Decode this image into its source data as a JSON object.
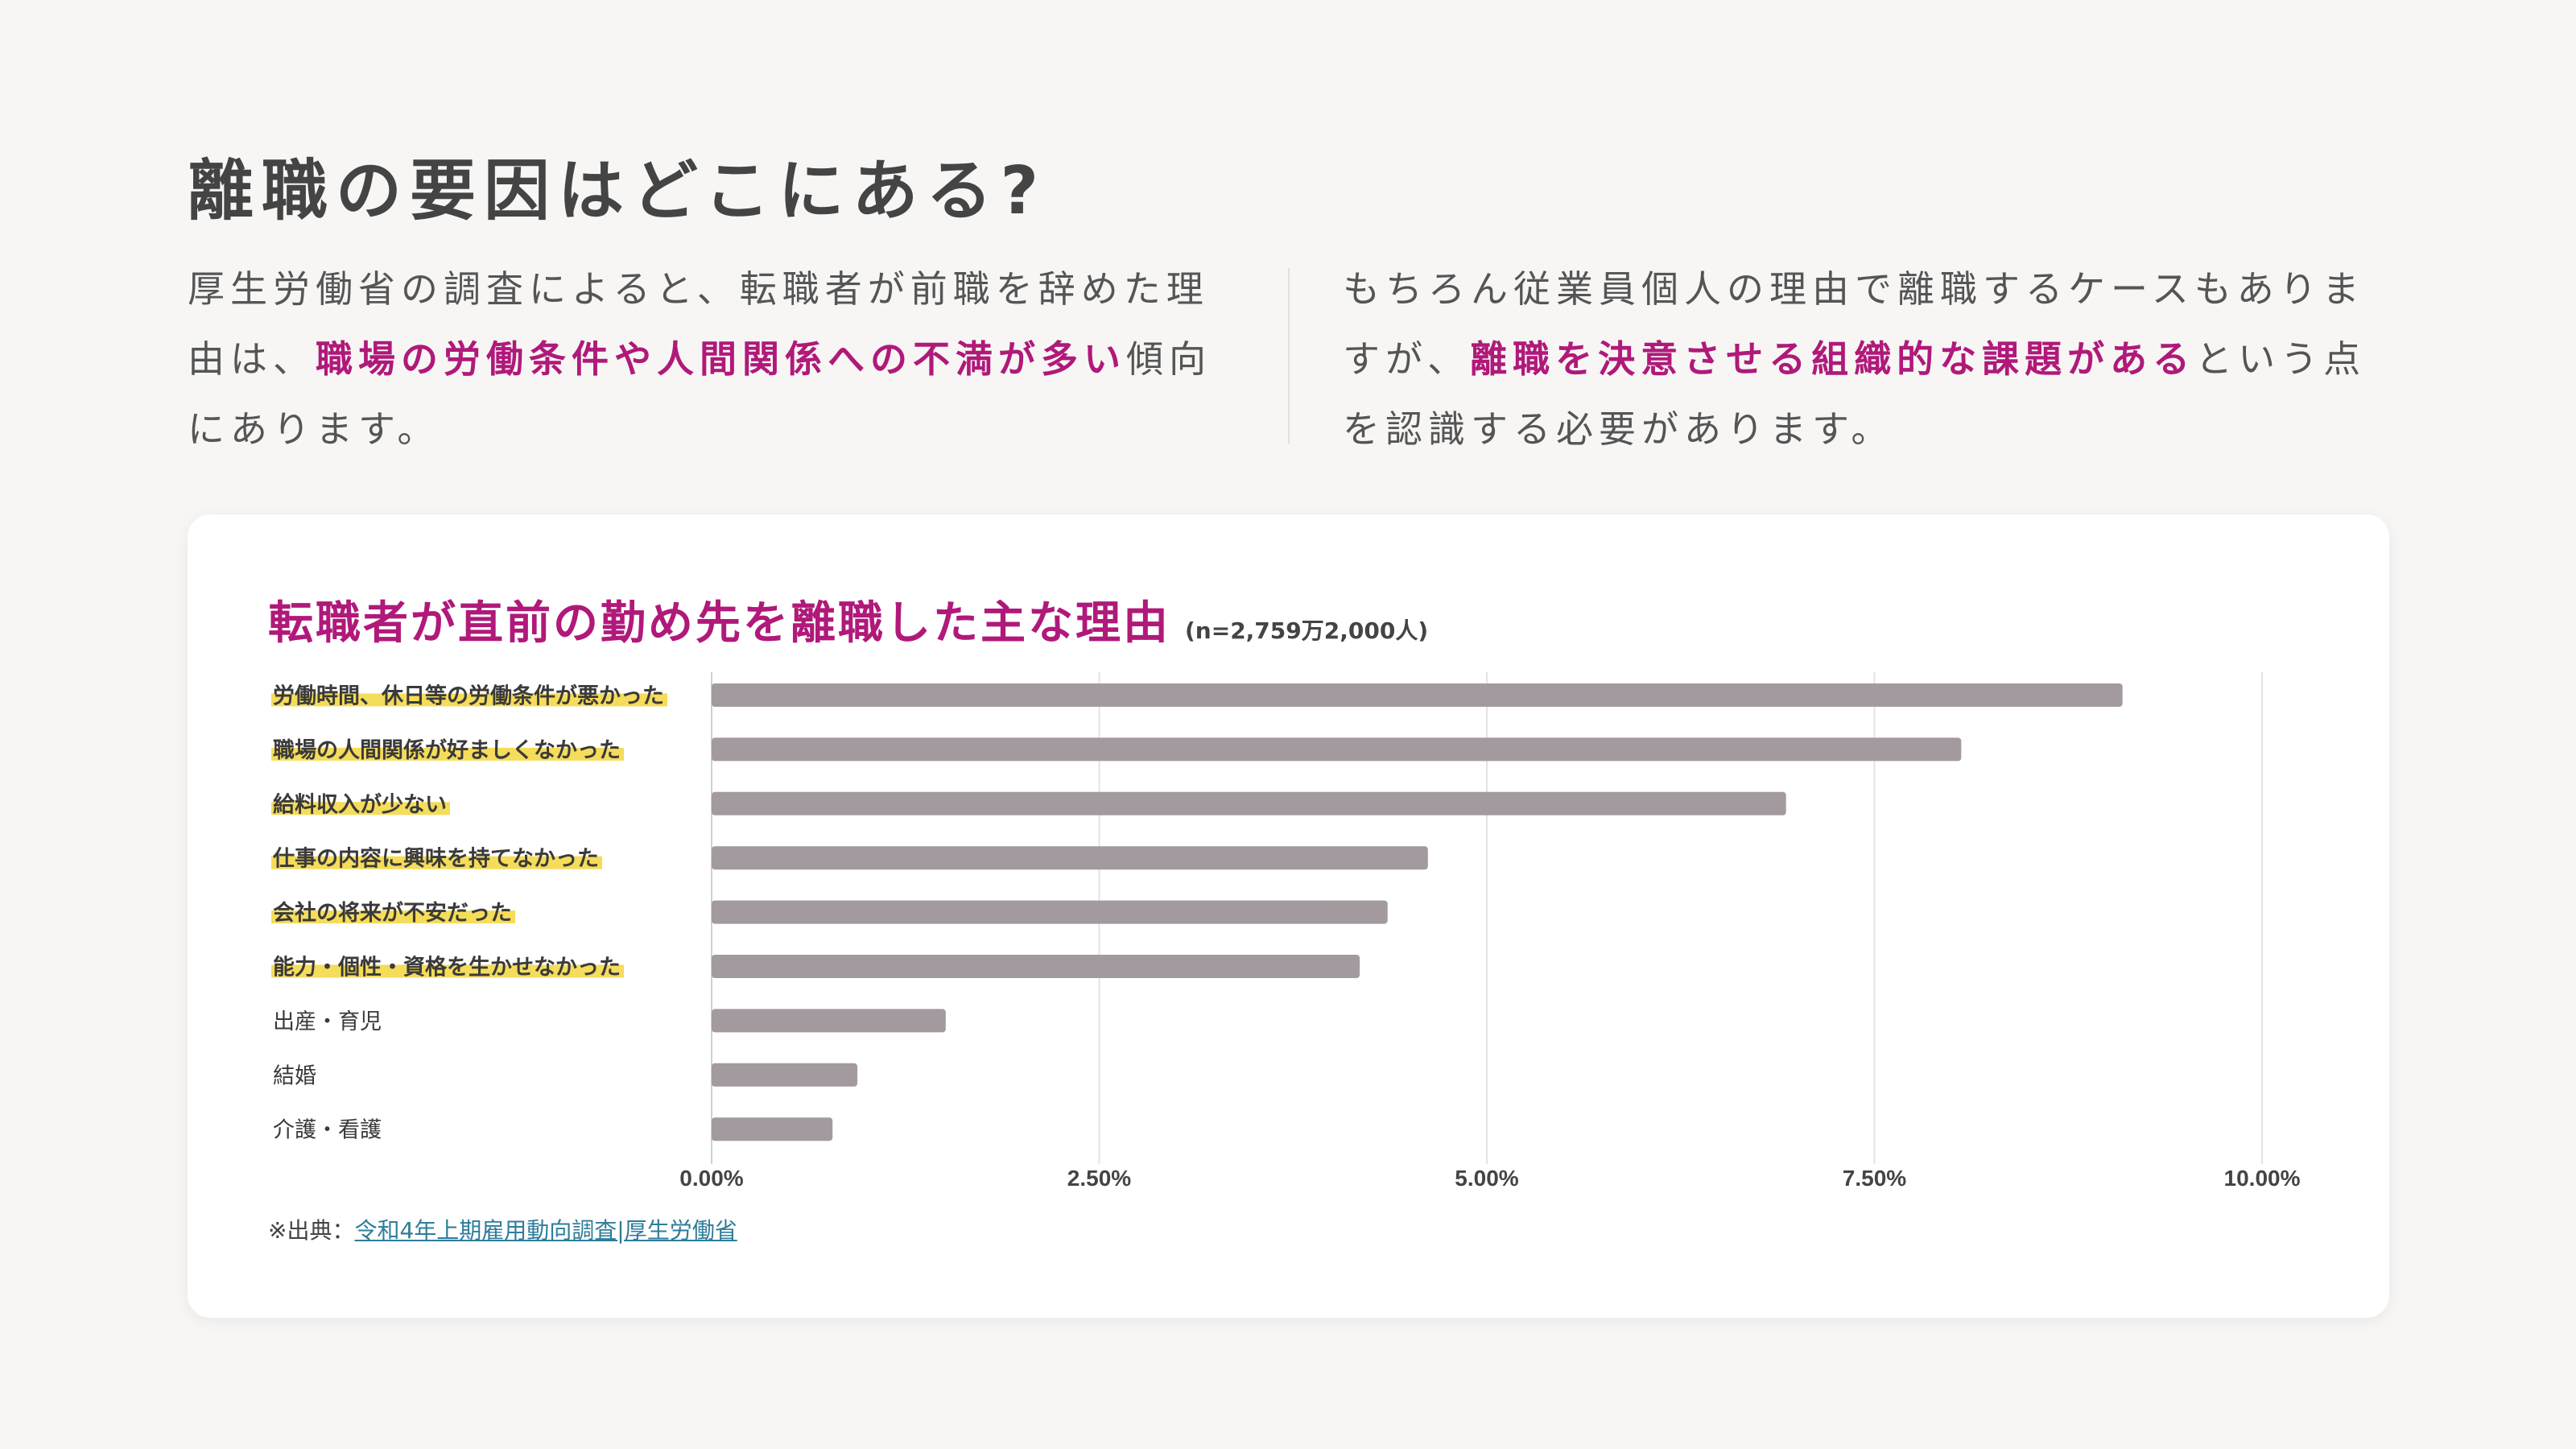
{
  "header": {
    "title": "離職の要因はどこにある?"
  },
  "intro_left": {
    "pre": "厚生労働省の調査によると、転職者が前職を辞めた理由は、",
    "highlight": "職場の労働条件や人間関係への不満が多い",
    "post": "傾向にあります。"
  },
  "intro_right": {
    "pre": "もちろん従業員個人の理由で離職するケースもありますが、",
    "highlight": "離職を決意させる組織的な課題がある",
    "post": "という点を認識する必要があります。"
  },
  "colors": {
    "accent": "#b0197a",
    "bar": "#a39a9f",
    "label_highlight": "#f5dc5a",
    "link": "#2f7d9a"
  },
  "chart_data": {
    "type": "bar",
    "orientation": "horizontal",
    "title": "転職者が直前の勤め先を離職した主な理由",
    "subtitle": "(n=2,759万2,000人)",
    "categories": [
      "労働時間、休日等の労働条件が悪かった",
      "職場の人間関係が好ましくなかった",
      "給料収入が少ない",
      "仕事の内容に興味を持てなかった",
      "会社の将来が不安だった",
      "能力・個性・資格を生かせなかった",
      "出産・育児",
      "結婚",
      "介護・看護"
    ],
    "highlighted": [
      true,
      true,
      true,
      true,
      true,
      true,
      false,
      false,
      false
    ],
    "values": [
      9.1,
      8.06,
      6.93,
      4.62,
      4.36,
      4.18,
      1.51,
      0.94,
      0.78
    ],
    "unit": "%",
    "xlim": [
      0,
      10
    ],
    "xticks": [
      "0.00%",
      "2.50%",
      "5.00%",
      "7.50%",
      "10.00%"
    ],
    "xtick_values": [
      0,
      2.5,
      5,
      7.5,
      10
    ],
    "grid": true,
    "legend": "none"
  },
  "source": {
    "prefix": "※出典：",
    "link_text": "令和4年上期雇用動向調査|厚生労働省"
  }
}
